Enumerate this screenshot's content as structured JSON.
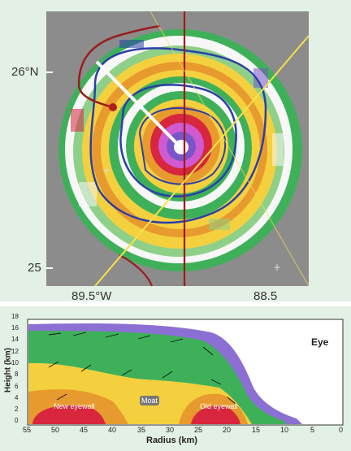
{
  "top_panel": {
    "lat_labels": [
      "26°N",
      "25"
    ],
    "lon_labels": [
      "89.5°W",
      "88.5"
    ]
  },
  "bottom_panel": {
    "y_axis_title": "Height (km)",
    "x_axis_title": "Radius (km)",
    "y_ticks": [
      "18",
      "16",
      "14",
      "12",
      "10",
      "8",
      "6",
      "4",
      "2",
      "0"
    ],
    "x_ticks": [
      "55",
      "50",
      "45",
      "40",
      "35",
      "30",
      "25",
      "20",
      "15",
      "10",
      "5",
      "0"
    ],
    "annotations": {
      "eye": "Eye",
      "new_eyewall": "New eyewall",
      "moat": "Moat",
      "old_eyewall": "Old eyewall"
    }
  },
  "colors": {
    "background": "#e3f0e6",
    "radar_gray": "#8c8c8c",
    "white_band": "#f7f7f7",
    "green": "#3fb05a",
    "light_green": "#8fd089",
    "yellow": "#f4d03f",
    "orange": "#e79a2e",
    "red": "#d7263d",
    "magenta": "#d05ad1",
    "purple": "#7a55c8",
    "blue_line": "#2a3fa8",
    "track_red": "#9b1c1c",
    "flight_yellow": "#f6e24a"
  }
}
